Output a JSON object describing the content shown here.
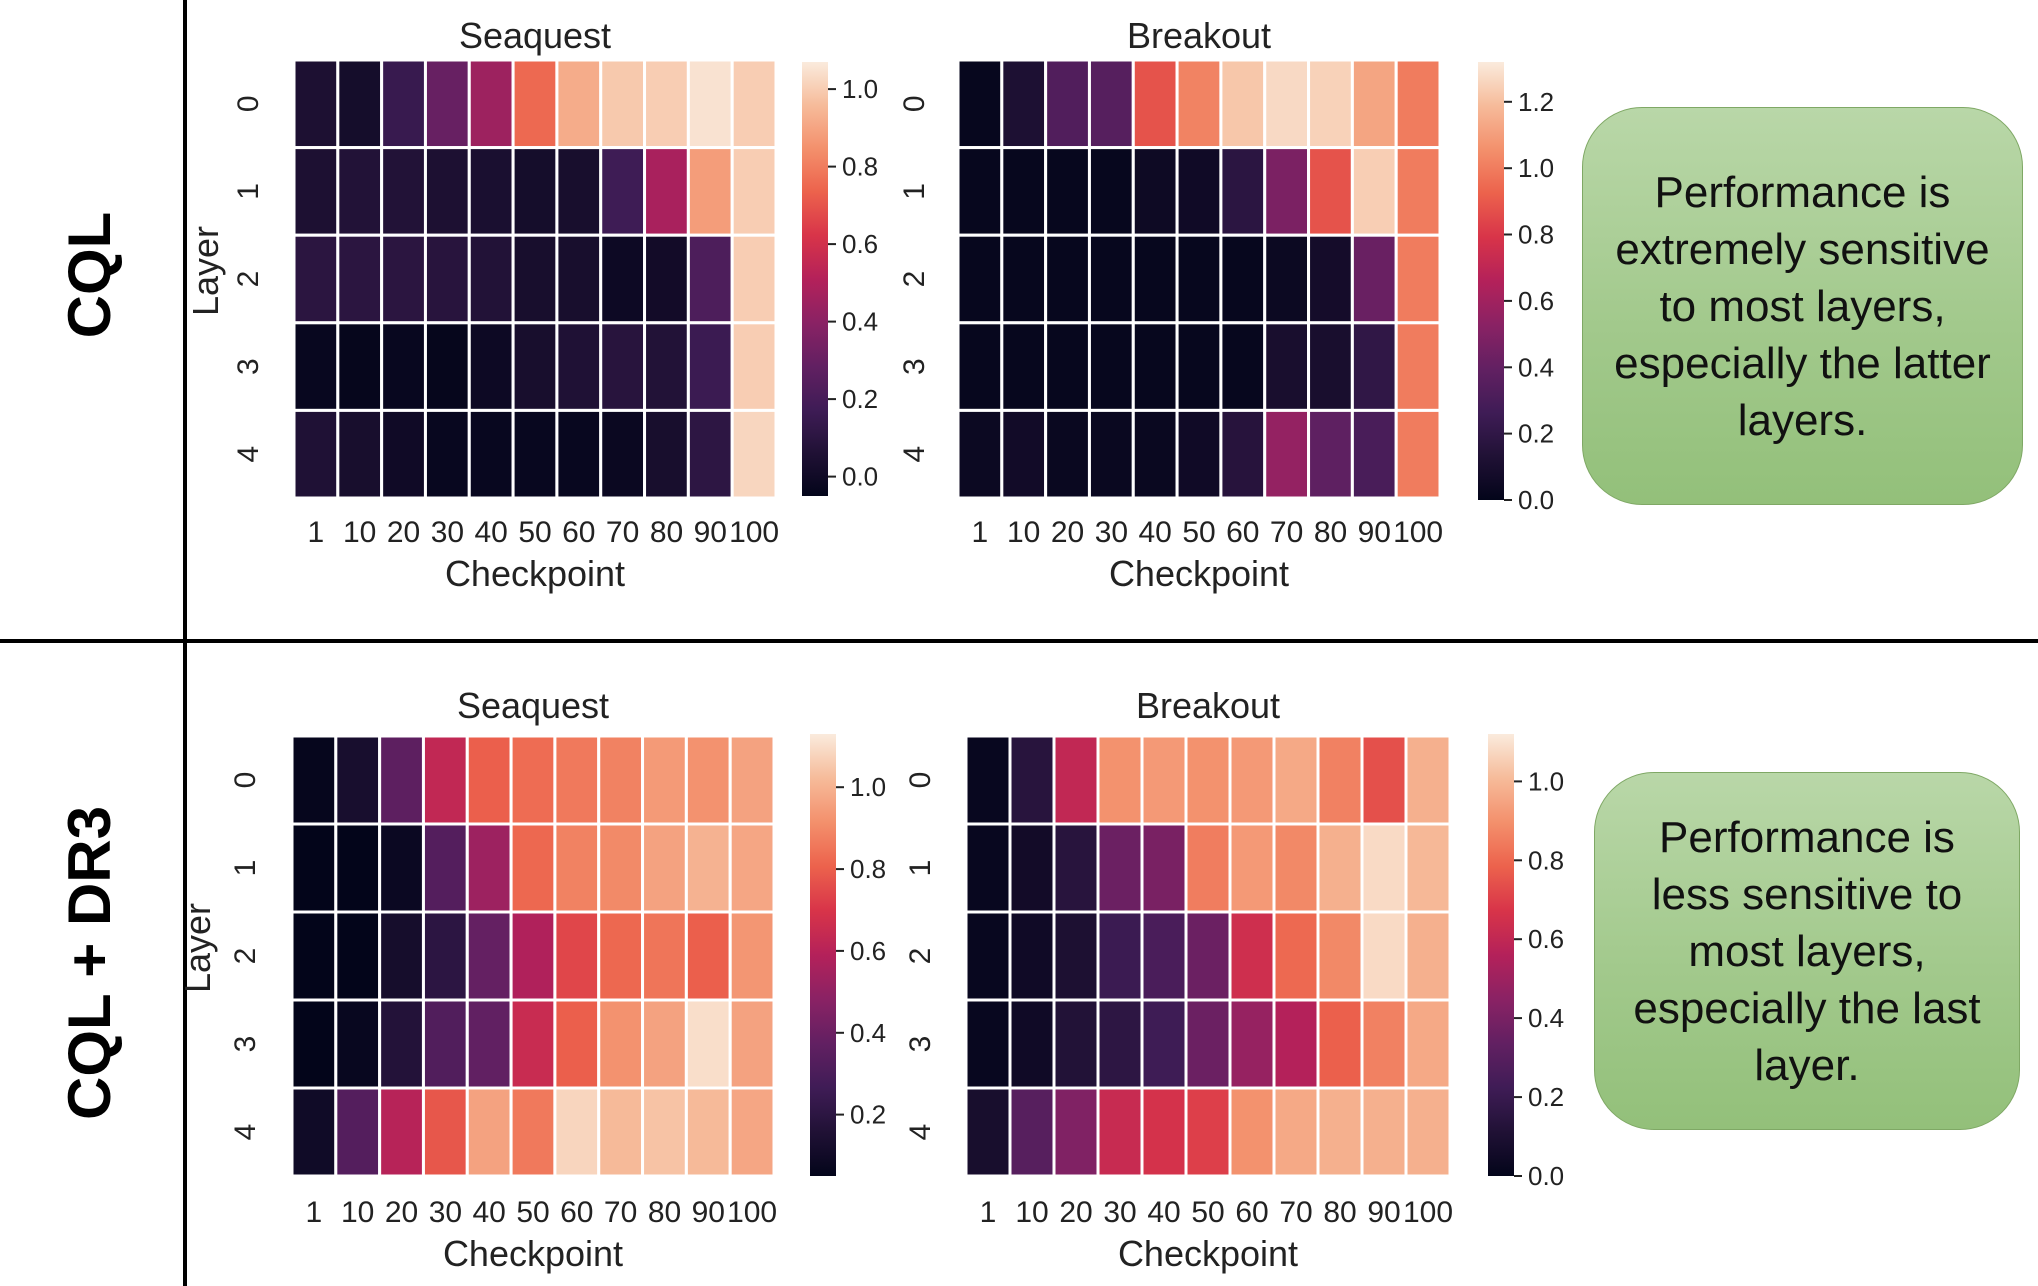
{
  "rows": [
    {
      "label": "CQL",
      "note": "Performance is extremely sensitive to most layers, especially the latter layers."
    },
    {
      "label": "CQL + DR3",
      "note": "Performance is less sensitive to most layers, especially the last layer."
    }
  ],
  "chart_data": [
    {
      "type": "heatmap",
      "row": "CQL",
      "title": "Seaquest",
      "xlabel": "Checkpoint",
      "ylabel": "Layer",
      "x": [
        "1",
        "10",
        "20",
        "30",
        "40",
        "50",
        "60",
        "70",
        "80",
        "90",
        "100"
      ],
      "y": [
        "0",
        "1",
        "2",
        "3",
        "4"
      ],
      "colorbar": {
        "min": -0.05,
        "max": 1.07,
        "ticks": [
          0.0,
          0.2,
          0.4,
          0.6,
          0.8,
          1.0
        ]
      },
      "values": [
        [
          0.05,
          0.02,
          0.15,
          0.3,
          0.45,
          0.75,
          0.92,
          0.99,
          1.0,
          1.05,
          1.0
        ],
        [
          0.05,
          0.07,
          0.07,
          0.05,
          0.04,
          0.02,
          0.03,
          0.17,
          0.48,
          0.88,
          1.0
        ],
        [
          0.1,
          0.1,
          0.1,
          0.09,
          0.07,
          0.03,
          0.03,
          -0.01,
          0.01,
          0.22,
          1.0
        ],
        [
          -0.03,
          -0.04,
          -0.03,
          -0.04,
          -0.01,
          0.03,
          0.06,
          0.09,
          0.07,
          0.16,
          1.0
        ],
        [
          0.06,
          0.03,
          0.0,
          -0.03,
          -0.03,
          -0.03,
          -0.03,
          -0.02,
          0.03,
          0.11,
          1.02
        ]
      ]
    },
    {
      "type": "heatmap",
      "row": "CQL",
      "title": "Breakout",
      "xlabel": "Checkpoint",
      "ylabel": "",
      "x": [
        "1",
        "10",
        "20",
        "30",
        "40",
        "50",
        "60",
        "70",
        "80",
        "90",
        "100"
      ],
      "y": [
        "0",
        "1",
        "2",
        "3",
        "4"
      ],
      "colorbar": {
        "min": 0.0,
        "max": 1.32,
        "ticks": [
          0.0,
          0.2,
          0.4,
          0.6,
          0.8,
          1.0,
          1.2
        ]
      },
      "values": [
        [
          0.02,
          0.12,
          0.33,
          0.35,
          0.88,
          1.02,
          1.22,
          1.27,
          1.25,
          1.12,
          1.0
        ],
        [
          0.02,
          0.02,
          0.02,
          0.02,
          0.05,
          0.06,
          0.18,
          0.48,
          0.88,
          1.24,
          1.0
        ],
        [
          0.02,
          0.02,
          0.02,
          0.02,
          0.02,
          0.02,
          0.02,
          0.04,
          0.08,
          0.42,
          1.0
        ],
        [
          0.02,
          0.02,
          0.02,
          0.02,
          0.02,
          0.02,
          0.02,
          0.1,
          0.1,
          0.2,
          1.0
        ],
        [
          0.04,
          0.07,
          0.03,
          0.03,
          0.03,
          0.06,
          0.16,
          0.56,
          0.38,
          0.3,
          1.0
        ]
      ]
    },
    {
      "type": "heatmap",
      "row": "CQL + DR3",
      "title": "Seaquest",
      "xlabel": "Checkpoint",
      "ylabel": "Layer",
      "x": [
        "1",
        "10",
        "20",
        "30",
        "40",
        "50",
        "60",
        "70",
        "80",
        "90",
        "100"
      ],
      "y": [
        "0",
        "1",
        "2",
        "3",
        "4"
      ],
      "colorbar": {
        "min": 0.05,
        "max": 1.13,
        "ticks": [
          0.2,
          0.4,
          0.6,
          0.8,
          1.0
        ]
      },
      "values": [
        [
          0.06,
          0.13,
          0.36,
          0.63,
          0.8,
          0.83,
          0.86,
          0.88,
          0.94,
          0.92,
          0.96
        ],
        [
          0.05,
          0.05,
          0.08,
          0.33,
          0.53,
          0.82,
          0.88,
          0.9,
          0.96,
          1.0,
          0.97
        ],
        [
          0.03,
          0.05,
          0.12,
          0.2,
          0.38,
          0.58,
          0.74,
          0.82,
          0.85,
          0.8,
          0.93
        ],
        [
          0.05,
          0.07,
          0.17,
          0.32,
          0.37,
          0.65,
          0.8,
          0.92,
          0.96,
          1.1,
          0.96
        ],
        [
          0.1,
          0.33,
          0.6,
          0.78,
          0.96,
          0.86,
          1.08,
          1.02,
          1.04,
          1.02,
          0.97
        ]
      ]
    },
    {
      "type": "heatmap",
      "row": "CQL + DR3",
      "title": "Breakout",
      "xlabel": "Checkpoint",
      "ylabel": "",
      "x": [
        "1",
        "10",
        "20",
        "30",
        "40",
        "50",
        "60",
        "70",
        "80",
        "90",
        "100"
      ],
      "y": [
        "0",
        "1",
        "2",
        "3",
        "4"
      ],
      "colorbar": {
        "min": 0.0,
        "max": 1.12,
        "ticks": [
          0.0,
          0.2,
          0.4,
          0.6,
          0.8,
          1.0
        ]
      },
      "values": [
        [
          0.02,
          0.14,
          0.6,
          0.9,
          0.92,
          0.9,
          0.92,
          0.96,
          0.86,
          0.74,
          0.98
        ],
        [
          0.02,
          0.06,
          0.14,
          0.36,
          0.4,
          0.85,
          0.92,
          0.88,
          0.98,
          1.08,
          1.0
        ],
        [
          0.02,
          0.05,
          0.1,
          0.21,
          0.26,
          0.36,
          0.64,
          0.8,
          0.88,
          1.08,
          0.98
        ],
        [
          0.02,
          0.05,
          0.12,
          0.16,
          0.22,
          0.36,
          0.48,
          0.56,
          0.78,
          0.86,
          0.96
        ],
        [
          0.08,
          0.3,
          0.42,
          0.62,
          0.66,
          0.7,
          0.9,
          0.96,
          0.98,
          0.98,
          0.98
        ]
      ]
    }
  ]
}
